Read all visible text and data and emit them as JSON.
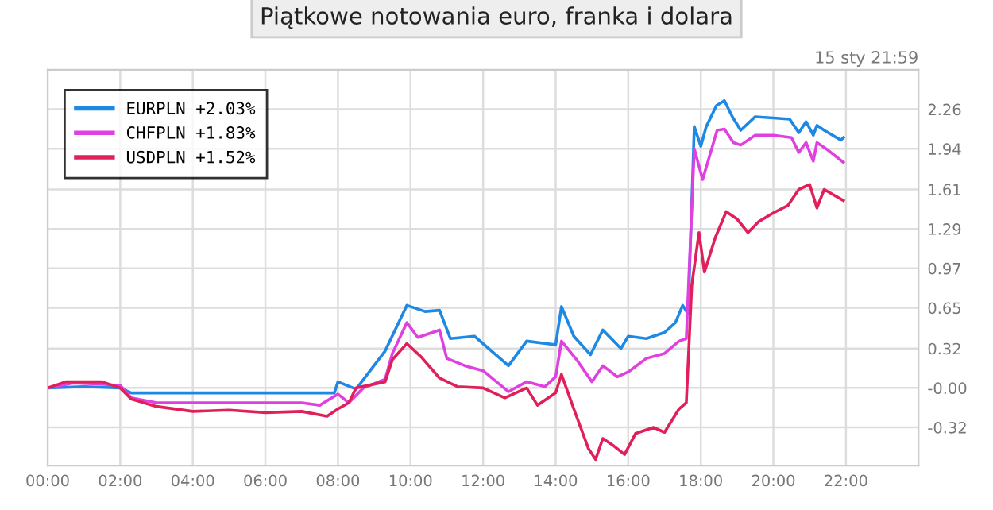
{
  "chart_data": {
    "type": "line",
    "title": "Piątkowe notowania euro, franka i dolara",
    "annotations": [
      "15 sty 21:59"
    ],
    "xlim": [
      0,
      24
    ],
    "xticks": [
      {
        "value": 0,
        "label": "00:00"
      },
      {
        "value": 2,
        "label": "02:00"
      },
      {
        "value": 4,
        "label": "04:00"
      },
      {
        "value": 6,
        "label": "06:00"
      },
      {
        "value": 8,
        "label": "08:00"
      },
      {
        "value": 10,
        "label": "10:00"
      },
      {
        "value": 12,
        "label": "12:00"
      },
      {
        "value": 14,
        "label": "14:00"
      },
      {
        "value": 16,
        "label": "16:00"
      },
      {
        "value": 18,
        "label": "18:00"
      },
      {
        "value": 20,
        "label": "20:00"
      },
      {
        "value": 22,
        "label": "22:00"
      }
    ],
    "ylim": [
      -0.63,
      2.58
    ],
    "yticks": [
      -0.32,
      {
        "value": 0,
        "label": "-0.00"
      },
      0.32,
      0.65,
      0.97,
      1.29,
      1.61,
      1.94,
      2.26
    ],
    "grid": true,
    "legend": "top left",
    "line_style": "solid",
    "marker": "none",
    "series": [
      {
        "name": "EURPLN +2.03%",
        "color": "#1e88e5",
        "x": [
          0,
          1,
          2,
          2.3,
          4,
          6,
          7.9,
          8.0,
          8.5,
          9.3,
          9.9,
          10.4,
          10.8,
          11.1,
          11.76,
          12.7,
          13.2,
          14.0,
          14.16,
          14.5,
          14.96,
          15.3,
          15.8,
          16.0,
          16.5,
          17.0,
          17.3,
          17.5,
          17.65,
          17.82,
          18.0,
          18.15,
          18.43,
          18.65,
          18.87,
          19.1,
          19.5,
          20.0,
          20.45,
          20.7,
          20.9,
          21.1,
          21.2,
          21.4,
          21.86,
          21.93
        ],
        "values": [
          0.0,
          0.01,
          0.0,
          -0.04,
          -0.04,
          -0.04,
          -0.04,
          0.05,
          -0.01,
          0.3,
          0.67,
          0.62,
          0.63,
          0.4,
          0.42,
          0.18,
          0.38,
          0.35,
          0.66,
          0.42,
          0.27,
          0.47,
          0.32,
          0.42,
          0.4,
          0.45,
          0.53,
          0.67,
          0.6,
          2.12,
          1.96,
          2.12,
          2.29,
          2.33,
          2.2,
          2.09,
          2.2,
          2.19,
          2.18,
          2.07,
          2.16,
          2.05,
          2.13,
          2.09,
          2.01,
          2.03
        ]
      },
      {
        "name": "CHFPLN +1.83%",
        "color": "#e040e0",
        "x": [
          0,
          0.7,
          1.5,
          2.0,
          2.3,
          3,
          5,
          7,
          7.5,
          8.0,
          8.3,
          8.7,
          9.3,
          9.5,
          9.9,
          10.2,
          10.8,
          11.0,
          11.5,
          12.0,
          12.7,
          13.2,
          13.7,
          14.0,
          14.16,
          14.6,
          15.0,
          15.3,
          15.7,
          16.0,
          16.5,
          17.0,
          17.4,
          17.6,
          17.82,
          18.05,
          18.2,
          18.45,
          18.65,
          18.9,
          19.1,
          19.5,
          20.0,
          20.5,
          20.7,
          20.9,
          21.1,
          21.2,
          21.5,
          21.93
        ],
        "values": [
          0.0,
          0.04,
          0.03,
          0.02,
          -0.08,
          -0.12,
          -0.12,
          -0.12,
          -0.14,
          -0.05,
          -0.12,
          0.0,
          0.07,
          0.28,
          0.53,
          0.41,
          0.47,
          0.24,
          0.18,
          0.14,
          -0.03,
          0.05,
          0.01,
          0.09,
          0.38,
          0.22,
          0.05,
          0.18,
          0.09,
          0.13,
          0.24,
          0.28,
          0.38,
          0.4,
          1.94,
          1.69,
          1.84,
          2.09,
          2.1,
          1.99,
          1.97,
          2.05,
          2.05,
          2.03,
          1.91,
          1.99,
          1.84,
          1.99,
          1.93,
          1.83
        ]
      },
      {
        "name": "USDPLN +1.52%",
        "color": "#e0205a",
        "x": [
          0,
          0.5,
          1.5,
          2.0,
          2.3,
          3,
          4,
          5,
          6,
          7,
          7.7,
          8.0,
          8.3,
          8.5,
          9.3,
          9.5,
          9.9,
          10.3,
          10.8,
          11.3,
          12.0,
          12.6,
          13.2,
          13.5,
          14.0,
          14.16,
          14.5,
          14.9,
          15.1,
          15.3,
          15.6,
          15.9,
          16.2,
          16.7,
          17.0,
          17.4,
          17.6,
          17.75,
          17.95,
          18.1,
          18.4,
          18.7,
          19.0,
          19.3,
          19.6,
          20.0,
          20.4,
          20.7,
          21.0,
          21.2,
          21.4,
          21.93
        ],
        "values": [
          0.0,
          0.05,
          0.05,
          0.0,
          -0.09,
          -0.15,
          -0.19,
          -0.18,
          -0.2,
          -0.19,
          -0.23,
          -0.17,
          -0.12,
          0.0,
          0.05,
          0.23,
          0.36,
          0.25,
          0.08,
          0.01,
          0.0,
          -0.08,
          0.0,
          -0.14,
          -0.04,
          0.11,
          -0.17,
          -0.49,
          -0.58,
          -0.41,
          -0.47,
          -0.54,
          -0.37,
          -0.32,
          -0.36,
          -0.17,
          -0.12,
          0.83,
          1.26,
          0.94,
          1.22,
          1.43,
          1.37,
          1.26,
          1.35,
          1.42,
          1.48,
          1.61,
          1.65,
          1.46,
          1.61,
          1.52
        ]
      }
    ]
  }
}
